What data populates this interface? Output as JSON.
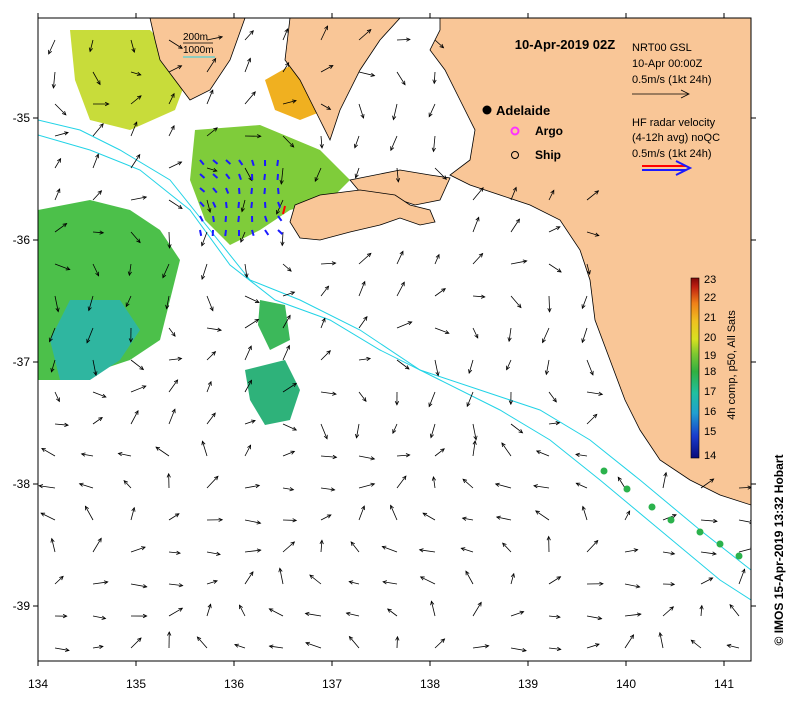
{
  "map": {
    "title": "10-Apr-2019 02Z",
    "x_ticks": [
      "134",
      "135",
      "136",
      "137",
      "138",
      "139",
      "140",
      "141"
    ],
    "y_ticks": [
      "-35",
      "-36",
      "-37",
      "-38",
      "-39"
    ],
    "depth_legend": {
      "line1": "200m",
      "line2": "1000m"
    },
    "places": {
      "city": "Adelaide",
      "argo": "Argo",
      "ship": "Ship"
    },
    "gsl_legend": {
      "line1": "NRT00 GSL",
      "line2": "10-Apr 00:00Z",
      "line3": "0.5m/s (1kt 24h)"
    },
    "hf_legend": {
      "line1": "HF radar velocity",
      "line2": "(4-12h avg) noQC",
      "line3": "0.5m/s (1kt 24h)"
    },
    "colorbar": {
      "ticks": [
        "14",
        "15",
        "16",
        "17",
        "18",
        "19",
        "20",
        "21",
        "22",
        "23"
      ],
      "label": "4h comp, p50, All Sats"
    },
    "credit": "© IMOS 15-Apr-2019 13:32 Hobart",
    "colors": {
      "land": "#f9c697",
      "sea": "#ffffff",
      "isobath": "#22d3e6",
      "argo": "#ff33ff",
      "hf_red": "#ff0000",
      "hf_blue": "#1a1aff",
      "drifter": "#2bb24c"
    }
  }
}
